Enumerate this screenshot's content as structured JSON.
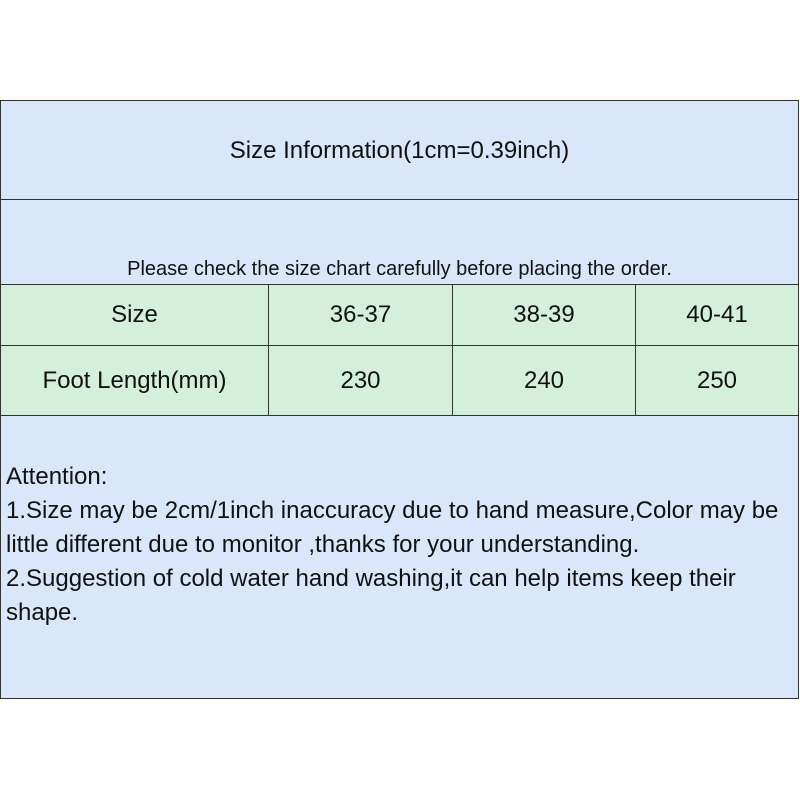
{
  "title": "Size Information(1cm=0.39inch)",
  "notice": "Please check the size chart carefully before placing the order.",
  "table": {
    "header": [
      "Size",
      "36-37",
      "38-39",
      "40-41"
    ],
    "row": [
      "Foot Length(mm)",
      "230",
      "240",
      "250"
    ]
  },
  "attention": {
    "heading": "Attention:",
    "items": [
      "1.Size may be 2cm/1inch inaccuracy due to hand measure,Color may be little different due to monitor ,thanks for your understanding.",
      "2.Suggestion of cold water hand washing,it can help items keep their shape."
    ]
  },
  "colors": {
    "blue": "#dae6fa",
    "green": "#d4f0dc"
  }
}
